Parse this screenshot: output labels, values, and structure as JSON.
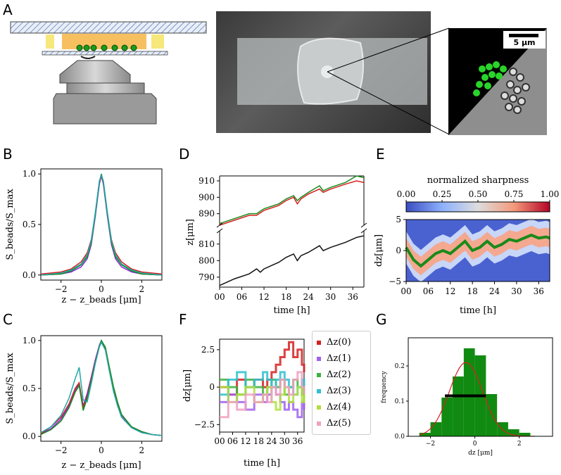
{
  "panels": {
    "A": "A",
    "B": "B",
    "C": "C",
    "D": "D",
    "E": "E",
    "F": "F",
    "G": "G"
  },
  "scale_bar_label": "5 μm",
  "colors": {
    "green": "#1a8a1a",
    "red": "#d62020",
    "black": "#111111",
    "purple": "#8a2be2",
    "teal": "#20a8a8",
    "blue": "#3050c0"
  },
  "chart_data": [
    {
      "panel": "B",
      "type": "line",
      "xlabel": "z − z_beads [μm]",
      "ylabel": "S_beads/S_max",
      "xlim": [
        -3,
        3
      ],
      "ylim": [
        -0.05,
        1.05
      ],
      "xticks": [
        "−2",
        "0",
        "2"
      ],
      "yticks": [
        "0.0",
        "0.5",
        "1.0"
      ],
      "series": [
        {
          "color": "#d62020",
          "x": [
            -3,
            -2,
            -1.5,
            -1,
            -0.7,
            -0.5,
            -0.3,
            -0.1,
            0,
            0.1,
            0.3,
            0.5,
            0.7,
            1,
            1.5,
            2,
            3
          ],
          "values": [
            0.01,
            0.03,
            0.06,
            0.13,
            0.22,
            0.35,
            0.6,
            0.9,
            0.98,
            0.9,
            0.6,
            0.35,
            0.22,
            0.13,
            0.06,
            0.03,
            0.01
          ]
        },
        {
          "color": "#8a2be2",
          "x": [
            -3,
            -2,
            -1.5,
            -1,
            -0.7,
            -0.5,
            -0.3,
            -0.1,
            0,
            0.1,
            0.3,
            0.5,
            0.7,
            1,
            1.5,
            2,
            3
          ],
          "values": [
            0.0,
            0.01,
            0.03,
            0.08,
            0.16,
            0.3,
            0.58,
            0.9,
            1.0,
            0.9,
            0.58,
            0.3,
            0.16,
            0.08,
            0.03,
            0.01,
            0.0
          ]
        },
        {
          "color": "#1a8a1a",
          "x": [
            -3,
            -2,
            -1.5,
            -1,
            -0.7,
            -0.5,
            -0.3,
            -0.1,
            0,
            0.1,
            0.3,
            0.5,
            0.7,
            1,
            1.5,
            2,
            3
          ],
          "values": [
            0.0,
            0.01,
            0.04,
            0.1,
            0.18,
            0.32,
            0.6,
            0.92,
            1.0,
            0.92,
            0.6,
            0.32,
            0.18,
            0.1,
            0.04,
            0.01,
            0.0
          ]
        },
        {
          "color": "#20a8a8",
          "x": [
            -3,
            -2,
            -1.5,
            -1,
            -0.7,
            -0.5,
            -0.3,
            -0.1,
            0,
            0.1,
            0.3,
            0.5,
            0.7,
            1,
            1.5,
            2,
            3
          ],
          "values": [
            0.0,
            0.02,
            0.05,
            0.11,
            0.2,
            0.34,
            0.62,
            0.93,
            0.99,
            0.93,
            0.62,
            0.34,
            0.2,
            0.11,
            0.05,
            0.02,
            0.0
          ]
        }
      ]
    },
    {
      "panel": "C",
      "type": "line",
      "xlabel": "z − z_beads [μm]",
      "ylabel": "S_beads/S_max",
      "xlim": [
        -3,
        3
      ],
      "ylim": [
        -0.05,
        1.05
      ],
      "xticks": [
        "−2",
        "0",
        "2"
      ],
      "yticks": [
        "0.0",
        "0.5",
        "1.0"
      ],
      "series": [
        {
          "color": "#8a2be2",
          "x": [
            -3,
            -2.5,
            -2,
            -1.6,
            -1.3,
            -1.1,
            -0.9,
            -0.7,
            -0.5,
            -0.3,
            -0.1,
            0,
            0.2,
            0.4,
            0.6,
            0.8,
            1,
            1.5,
            2,
            2.5,
            3
          ],
          "values": [
            0.03,
            0.08,
            0.18,
            0.32,
            0.48,
            0.55,
            0.32,
            0.45,
            0.62,
            0.8,
            0.95,
            1.0,
            0.92,
            0.7,
            0.5,
            0.35,
            0.22,
            0.1,
            0.05,
            0.02,
            0.01
          ]
        },
        {
          "color": "#d62020",
          "x": [
            -3,
            -2.5,
            -2,
            -1.6,
            -1.3,
            -1.1,
            -0.9,
            -0.7,
            -0.5,
            -0.3,
            -0.1,
            0,
            0.2,
            0.4,
            0.6,
            0.8,
            1,
            1.5,
            2,
            2.5,
            3
          ],
          "values": [
            0.03,
            0.1,
            0.2,
            0.34,
            0.5,
            0.56,
            0.3,
            0.42,
            0.6,
            0.78,
            0.94,
            0.99,
            0.9,
            0.68,
            0.48,
            0.33,
            0.2,
            0.09,
            0.04,
            0.02,
            0.01
          ]
        },
        {
          "color": "#1a8a1a",
          "x": [
            -3,
            -2.5,
            -2,
            -1.6,
            -1.3,
            -1.1,
            -0.9,
            -0.7,
            -0.5,
            -0.3,
            -0.1,
            0,
            0.2,
            0.4,
            0.6,
            0.8,
            1,
            1.5,
            2,
            2.5,
            3
          ],
          "values": [
            0.02,
            0.07,
            0.16,
            0.3,
            0.46,
            0.53,
            0.27,
            0.4,
            0.58,
            0.77,
            0.94,
            1.0,
            0.93,
            0.72,
            0.52,
            0.36,
            0.23,
            0.1,
            0.05,
            0.02,
            0.01
          ]
        },
        {
          "color": "#20a8a8",
          "x": [
            -3,
            -2.5,
            -2,
            -1.6,
            -1.3,
            -1.1,
            -0.9,
            -0.7,
            -0.5,
            -0.3,
            -0.1,
            0,
            0.2,
            0.4,
            0.6,
            0.8,
            1,
            1.5,
            2,
            2.5,
            3
          ],
          "values": [
            0.04,
            0.1,
            0.22,
            0.4,
            0.6,
            0.72,
            0.38,
            0.36,
            0.55,
            0.76,
            0.93,
            0.98,
            0.9,
            0.68,
            0.47,
            0.32,
            0.2,
            0.09,
            0.04,
            0.02,
            0.01
          ]
        }
      ]
    },
    {
      "panel": "D",
      "type": "line",
      "xlabel": "time [h]",
      "ylabel": "z[μm]",
      "xticks": [
        "00",
        "06",
        "12",
        "18",
        "24",
        "30",
        "36"
      ],
      "upper": {
        "ylim": [
          883,
          913
        ],
        "yticks": [
          "890",
          "900",
          "910"
        ],
        "series": [
          {
            "color": "#1a8a1a",
            "x": [
              0,
              4,
              8,
              10,
              12,
              16,
              18,
              20,
              21,
              22,
              24,
              27,
              28,
              30,
              34,
              37,
              39
            ],
            "values": [
              884,
              887,
              890,
              890,
              893,
              896,
              899,
              901,
              898,
              900,
              903,
              907,
              904,
              906,
              909,
              913,
              912
            ]
          },
          {
            "color": "#d62020",
            "x": [
              0,
              4,
              8,
              10,
              12,
              16,
              18,
              20,
              21,
              22,
              24,
              27,
              28,
              30,
              34,
              37,
              39
            ],
            "values": [
              883,
              886,
              889,
              889,
              892,
              895,
              898,
              900,
              896,
              899,
              902,
              905,
              903,
              905,
              908,
              910,
              909
            ]
          }
        ]
      },
      "lower": {
        "ylim": [
          784,
          818
        ],
        "yticks": [
          "790",
          "800",
          "810"
        ],
        "series": [
          {
            "color": "#111111",
            "x": [
              0,
              4,
              8,
              10,
              11,
              12,
              16,
              18,
              20,
              21,
              22,
              24,
              27,
              28,
              30,
              34,
              37,
              39
            ],
            "values": [
              785,
              789,
              792,
              795,
              793,
              795,
              799,
              802,
              804,
              800,
              803,
              805,
              809,
              806,
              808,
              811,
              814,
              815
            ]
          }
        ]
      }
    },
    {
      "panel": "E",
      "type": "heatmap",
      "title": "normalized sharpness",
      "colorbar_ticks": [
        "0.00",
        "0.25",
        "0.50",
        "0.75",
        "1.00"
      ],
      "xlabel": "time [h]",
      "ylabel": "dz[μm]",
      "xticks": [
        "00",
        "06",
        "12",
        "18",
        "24",
        "30",
        "36"
      ],
      "yticks": [
        "5",
        "0",
        "−5"
      ],
      "ylim": [
        -5,
        5
      ],
      "ridge": {
        "color": "#1a8a1a",
        "x": [
          0,
          2,
          4,
          6,
          8,
          10,
          12,
          14,
          16,
          18,
          20,
          22,
          24,
          26,
          28,
          30,
          32,
          34,
          36,
          38,
          39
        ],
        "values": [
          0.5,
          -1.5,
          -2.5,
          -1.5,
          -0.5,
          0,
          -0.5,
          0.5,
          1.5,
          0,
          0.5,
          1.5,
          0.5,
          1,
          1.8,
          1.5,
          2,
          2.5,
          2,
          2.2,
          2
        ]
      }
    },
    {
      "panel": "F",
      "type": "line",
      "xlabel": "time [h]",
      "ylabel": "dz[μm]",
      "xticks": [
        "00",
        "06",
        "12",
        "18",
        "24",
        "30",
        "36"
      ],
      "yticks": [
        "2.5",
        "0",
        "−2.5"
      ],
      "ylim": [
        -3,
        3.2
      ],
      "legend": [
        "Δz(0)",
        "Δz(1)",
        "Δz(2)",
        "Δz(3)",
        "Δz(4)",
        "Δz(5)"
      ],
      "series": [
        {
          "color": "#d62020",
          "x": [
            0,
            4,
            8,
            12,
            16,
            20,
            22,
            24,
            26,
            28,
            30,
            32,
            34,
            36,
            38,
            39
          ],
          "values": [
            0,
            -0.5,
            0.5,
            0,
            0.5,
            0,
            0.5,
            1,
            1.5,
            2,
            2.5,
            3,
            2,
            2.5,
            1.5,
            1
          ]
        },
        {
          "color": "#a060f0",
          "x": [
            0,
            4,
            8,
            12,
            16,
            20,
            22,
            24,
            26,
            28,
            30,
            32,
            34,
            36,
            38,
            39
          ],
          "values": [
            -1,
            -0.5,
            -1,
            -1.5,
            -0.5,
            -1,
            -0.5,
            0,
            -0.5,
            -1,
            -1.5,
            -1,
            -1.5,
            -2,
            -1,
            -1.5
          ]
        },
        {
          "color": "#40b040",
          "x": [
            0,
            4,
            8,
            12,
            16,
            20,
            22,
            24,
            26,
            28,
            30,
            32,
            34,
            36,
            38,
            39
          ],
          "values": [
            0.5,
            0,
            -0.5,
            0.5,
            0,
            -0.5,
            0,
            0.5,
            0,
            0.5,
            -0.5,
            0,
            0.5,
            0,
            -0.5,
            0
          ]
        },
        {
          "color": "#30c0d0",
          "x": [
            0,
            4,
            8,
            12,
            16,
            20,
            22,
            24,
            26,
            28,
            30,
            32,
            34,
            36,
            38,
            39
          ],
          "values": [
            -0.5,
            0.5,
            1,
            0,
            0.5,
            1,
            0.5,
            0,
            0.5,
            1,
            0.5,
            0,
            -0.5,
            0,
            0.5,
            0
          ]
        },
        {
          "color": "#b0e040",
          "x": [
            0,
            4,
            8,
            12,
            16,
            20,
            22,
            24,
            26,
            28,
            30,
            32,
            34,
            36,
            38,
            39
          ],
          "values": [
            0,
            -1,
            -0.5,
            0,
            -1,
            -0.5,
            0,
            -1,
            -1.5,
            -0.5,
            0,
            -1,
            -0.5,
            0,
            -1,
            -0.5
          ]
        },
        {
          "color": "#f0a0c0",
          "x": [
            0,
            4,
            8,
            12,
            16,
            20,
            22,
            24,
            26,
            28,
            30,
            32,
            34,
            36,
            38,
            39
          ],
          "values": [
            -2,
            -1,
            -1.5,
            -0.5,
            -1,
            -0.5,
            -1,
            0,
            -0.5,
            0.5,
            0,
            -0.5,
            0.5,
            1,
            0,
            -0.5
          ]
        }
      ]
    },
    {
      "panel": "G",
      "type": "bar",
      "xlabel": "dz [μm]",
      "ylabel": "frequency",
      "xticks": [
        "−2",
        "0",
        "2"
      ],
      "yticks": [
        "0.0",
        "0.1",
        "0.2"
      ],
      "xlim": [
        -3,
        3.5
      ],
      "ylim": [
        0,
        0.28
      ],
      "bin_edges": [
        -2.5,
        -2,
        -1.5,
        -1,
        -0.5,
        0,
        0.5,
        1,
        1.5,
        2,
        2.5
      ],
      "values": [
        0.01,
        0.04,
        0.11,
        0.17,
        0.25,
        0.23,
        0.12,
        0.04,
        0.02,
        0.01
      ],
      "fit_color": "#d62020",
      "fwhm_bar": {
        "x": [
          -1.35,
          0.5
        ],
        "y": 0.115
      }
    }
  ]
}
